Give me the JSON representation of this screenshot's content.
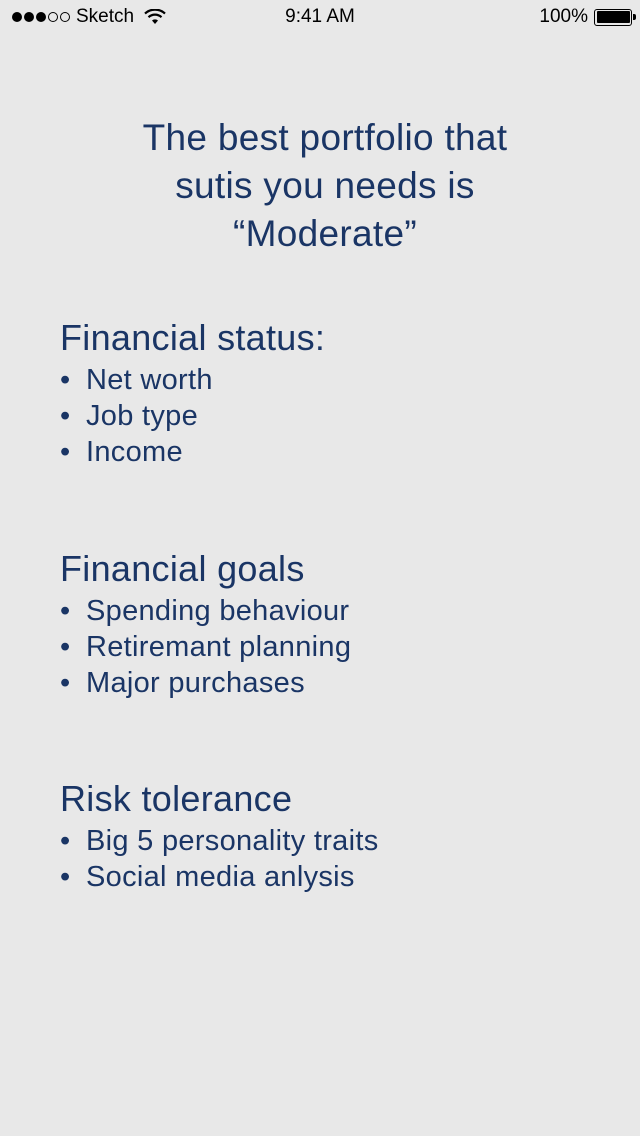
{
  "status_bar": {
    "carrier": "Sketch",
    "time": "9:41 AM",
    "battery": "100%"
  },
  "headline": {
    "line1": "The best portfolio that",
    "line2": "sutis you needs is",
    "line3": "“Moderate”"
  },
  "sections": [
    {
      "title": "Financial status:",
      "items": [
        "Net worth",
        "Job type",
        "Income"
      ]
    },
    {
      "title": "Financial goals",
      "items": [
        "Spending behaviour",
        "Retiremant planning",
        "Major purchases"
      ]
    },
    {
      "title": "Risk tolerance",
      "items": [
        "Big 5 personality traits",
        "Social media anlysis"
      ]
    }
  ],
  "bullet_char": "•",
  "colors": {
    "background": "#e8e8e8",
    "text": "#1a3565"
  }
}
